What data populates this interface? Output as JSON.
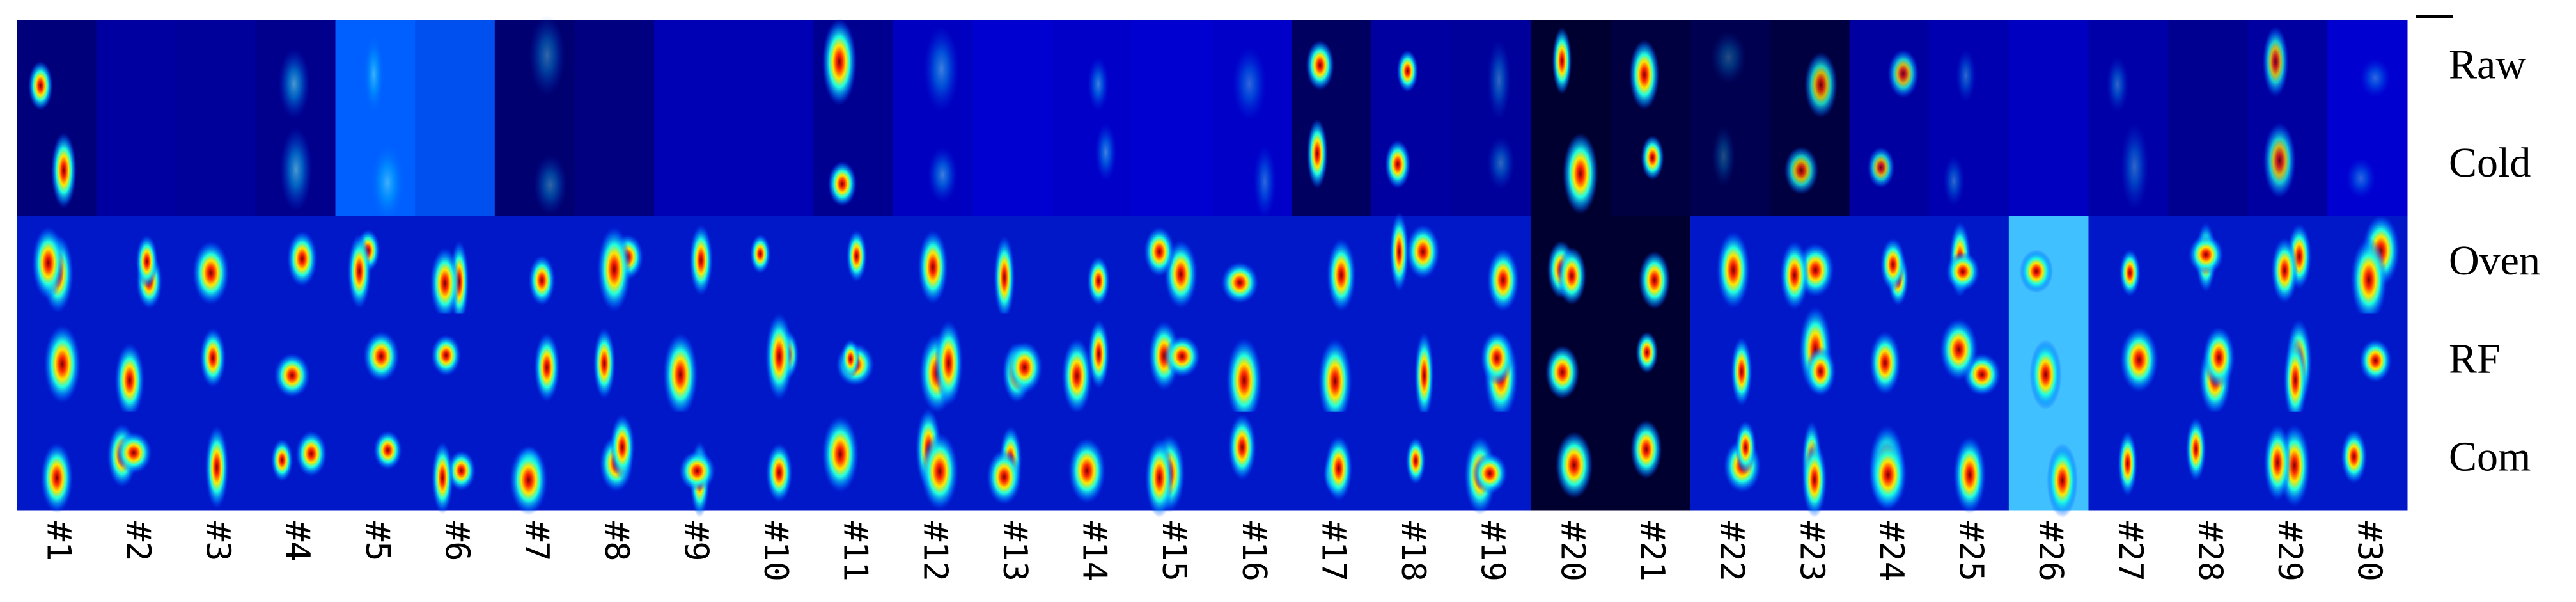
{
  "row_labels": [
    "Raw",
    "Cold",
    "Oven",
    "RF",
    "Com"
  ],
  "column_labels": [
    "#1",
    "#2",
    "#3",
    "#4",
    "#5",
    "#6",
    "#7",
    "#8",
    "#9",
    "#10",
    "#11",
    "#12",
    "#13",
    "#14",
    "#15",
    "#16",
    "#17",
    "#18",
    "#19",
    "#20",
    "#21",
    "#22",
    "#23",
    "#24",
    "#25",
    "#26",
    "#27",
    "#28",
    "#29",
    "#30"
  ]
}
